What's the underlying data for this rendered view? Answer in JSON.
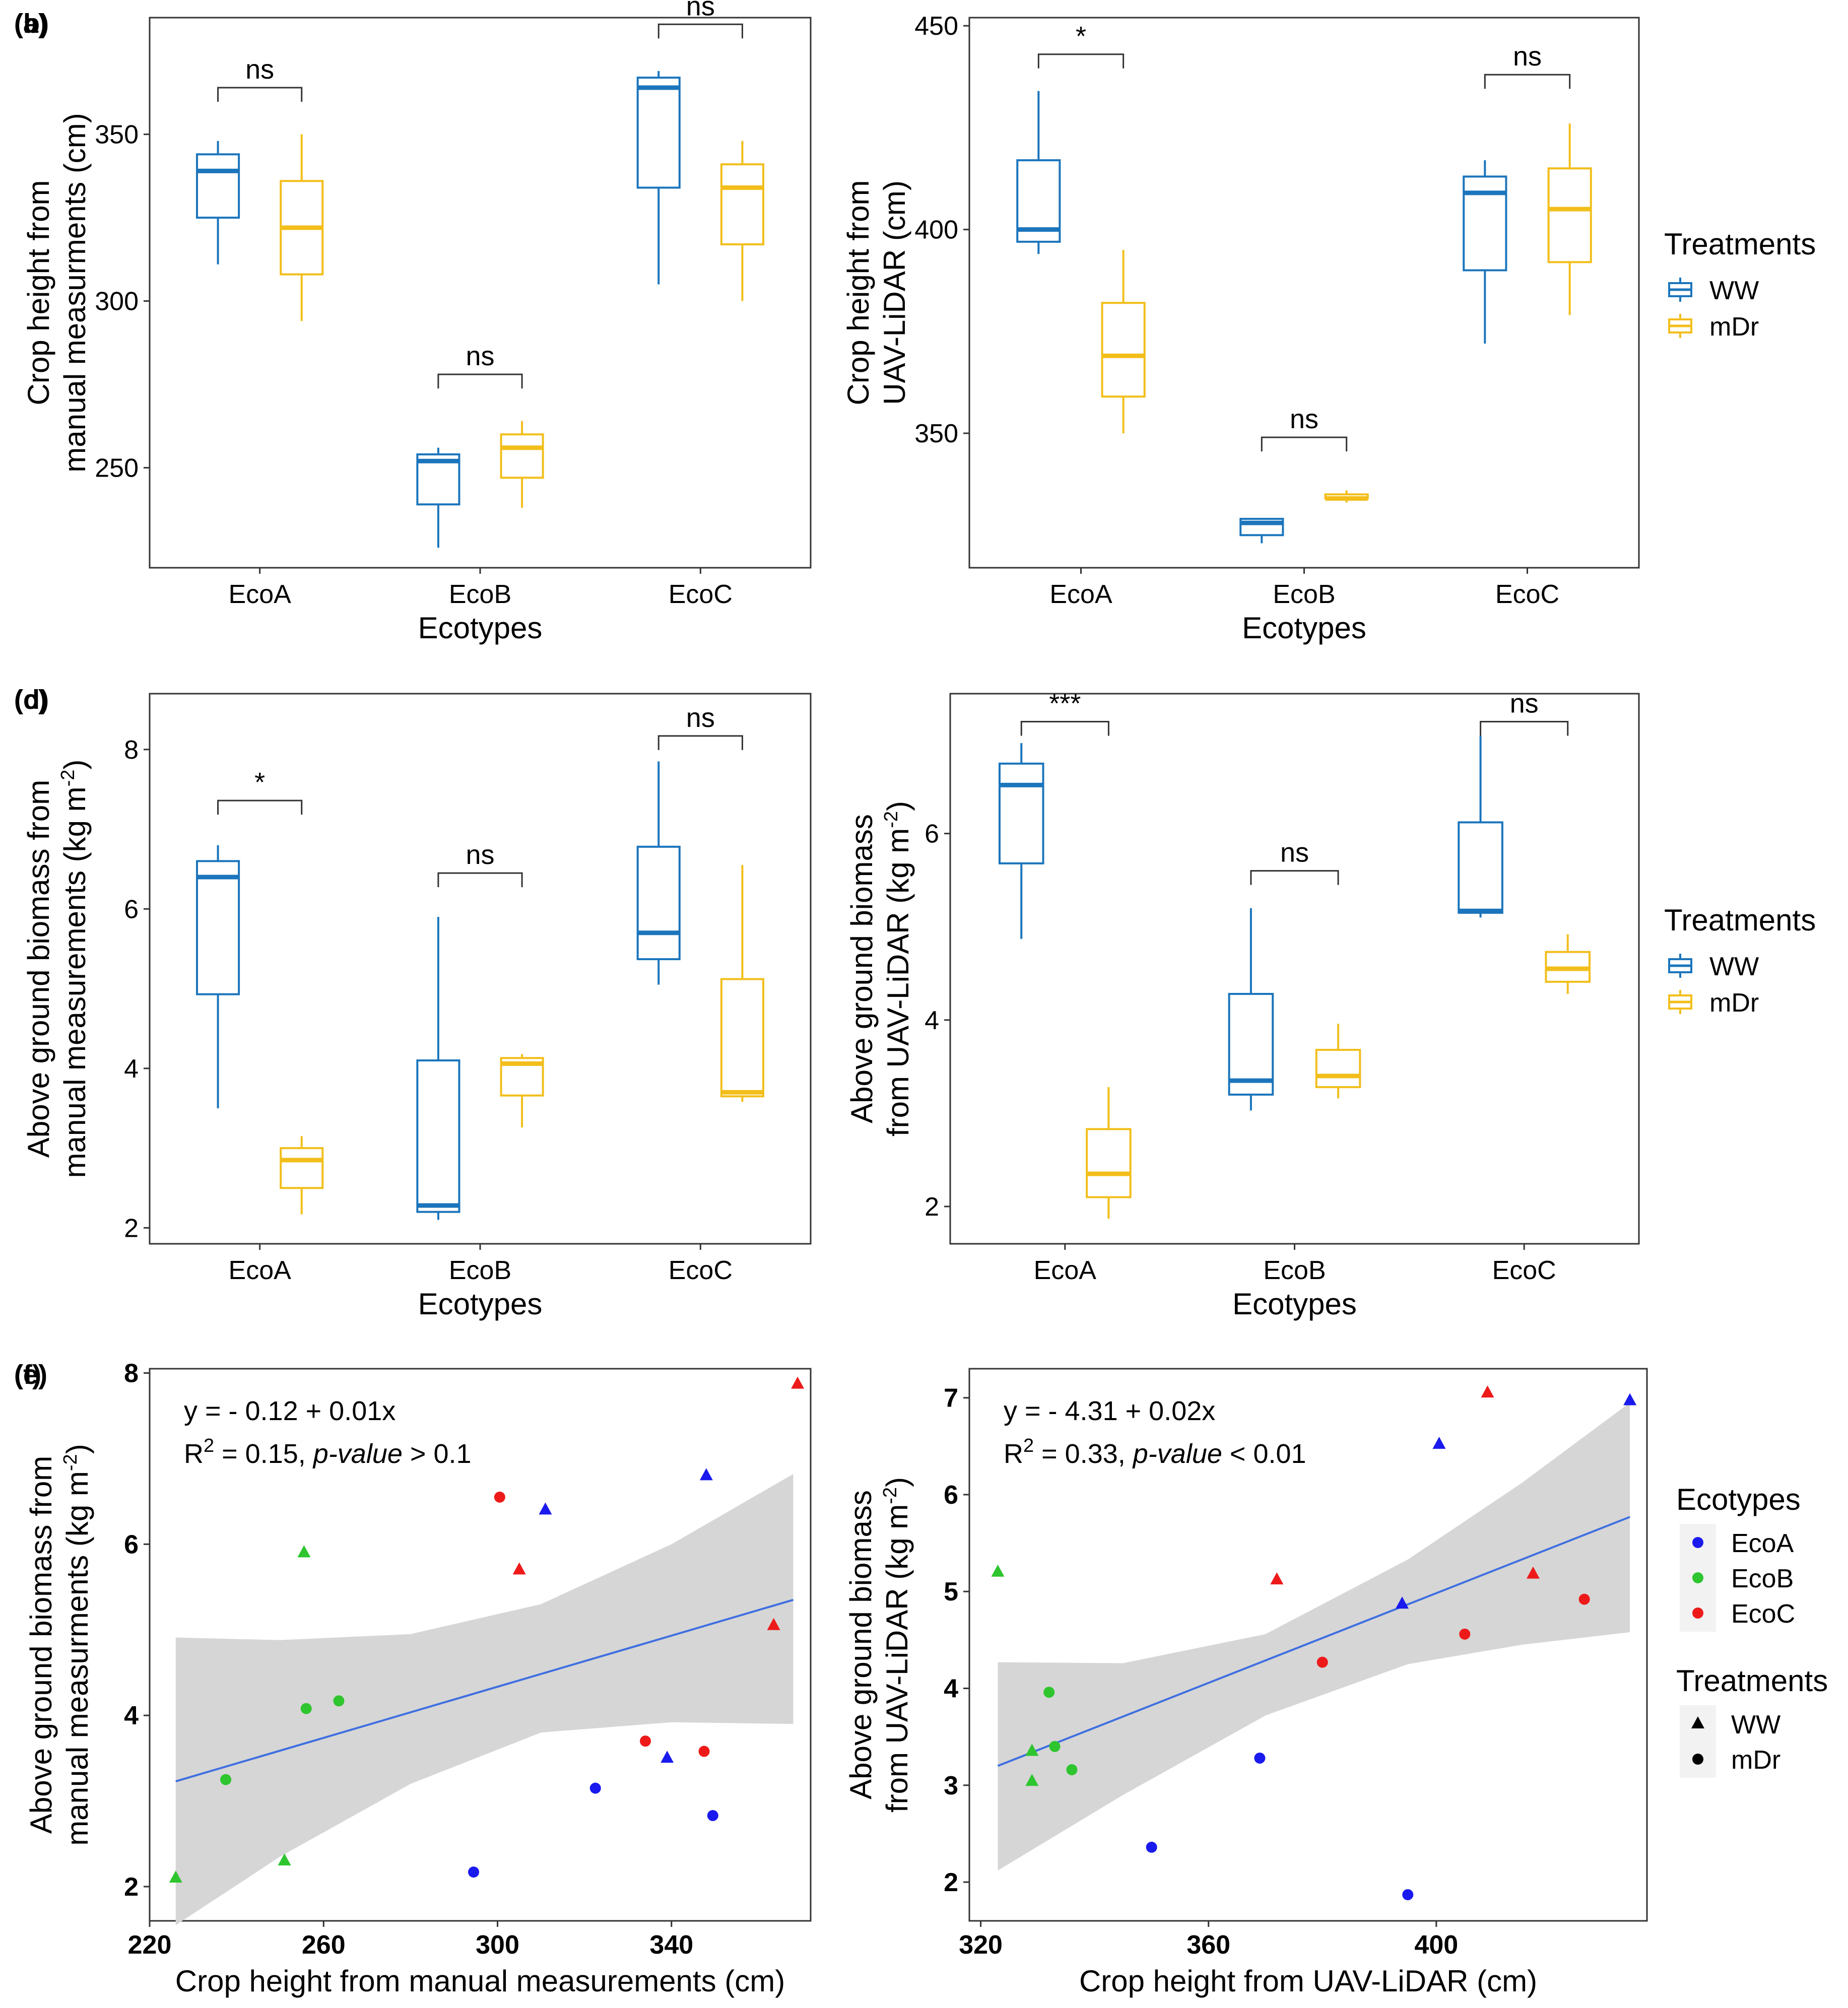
{
  "colors": {
    "WW": "#1b75bc",
    "mDr": "#f2be1a",
    "EcoA": "#1a1aee",
    "EcoB": "#2ec52e",
    "EcoC": "#ee1a1a",
    "band": "#d6d6d6",
    "fit": "#3f6fe0"
  },
  "chart_data": [
    {
      "id": "a",
      "type": "boxplot",
      "panel_label": "(a)",
      "ylabel_lines": [
        "Crop height from",
        "manual measurments (cm)"
      ],
      "xlabel": "Ecotypes",
      "categories": [
        "EcoA",
        "EcoB",
        "EcoC"
      ],
      "ylim": [
        220,
        385
      ],
      "yticks": [
        250,
        300,
        350
      ],
      "ytick_labels": [
        "250",
        "300",
        "350"
      ],
      "series": [
        {
          "name": "WW",
          "boxes": [
            [
              311,
              325,
              339,
              344,
              348
            ],
            [
              226,
              239,
              252,
              254,
              256
            ],
            [
              305,
              334,
              364,
              367,
              369
            ]
          ]
        },
        {
          "name": "mDr",
          "boxes": [
            [
              294,
              308,
              322,
              336,
              350
            ],
            [
              238,
              247,
              256,
              260,
              264
            ],
            [
              300,
              317,
              334,
              341,
              348
            ]
          ]
        }
      ],
      "significance": [
        {
          "category": 0,
          "label": "ns",
          "y": 364
        },
        {
          "category": 1,
          "label": "ns",
          "y": 278
        },
        {
          "category": 2,
          "label": "ns",
          "y": 383
        }
      ],
      "legend": {
        "title": "",
        "items": []
      }
    },
    {
      "id": "b",
      "type": "boxplot",
      "panel_label": "(b)",
      "ylabel_lines": [
        "Crop height from",
        "UAV-LiDAR (cm)"
      ],
      "xlabel": "Ecotypes",
      "categories": [
        "EcoA",
        "EcoB",
        "EcoC"
      ],
      "ylim": [
        317,
        452
      ],
      "yticks": [
        350,
        400,
        450
      ],
      "ytick_labels": [
        "350",
        "400",
        "450"
      ],
      "series": [
        {
          "name": "WW",
          "boxes": [
            [
              394,
              397,
              400,
              417,
              434
            ],
            [
              323,
              325,
              328,
              329,
              329
            ],
            [
              372,
              390,
              409,
              413,
              417
            ]
          ]
        },
        {
          "name": "mDr",
          "boxes": [
            [
              350,
              359,
              369,
              382,
              395
            ],
            [
              333,
              334,
              334,
              335,
              336
            ],
            [
              379,
              392,
              405,
              415,
              426
            ]
          ]
        }
      ],
      "significance": [
        {
          "category": 0,
          "label": "*",
          "y": 443
        },
        {
          "category": 1,
          "label": "ns",
          "y": 349
        },
        {
          "category": 2,
          "label": "ns",
          "y": 438
        }
      ],
      "legend": {
        "title": "Treatments",
        "items": [
          "WW",
          "mDr"
        ]
      }
    },
    {
      "id": "c",
      "type": "boxplot",
      "panel_label": "(c)",
      "ylabel_lines": [
        "Above ground biomass from",
        "manual measurements (kg m^-2)"
      ],
      "xlabel": "Ecotypes",
      "categories": [
        "EcoA",
        "EcoB",
        "EcoC"
      ],
      "ylim": [
        1.8,
        8.7
      ],
      "yticks": [
        2,
        4,
        6,
        8
      ],
      "ytick_labels": [
        "2",
        "4",
        "6",
        "8"
      ],
      "series": [
        {
          "name": "WW",
          "boxes": [
            [
              3.5,
              4.93,
              6.4,
              6.6,
              6.8
            ],
            [
              2.1,
              2.2,
              2.28,
              4.1,
              5.9
            ],
            [
              5.05,
              5.37,
              5.7,
              6.78,
              7.85
            ]
          ]
        },
        {
          "name": "mDr",
          "boxes": [
            [
              2.17,
              2.5,
              2.85,
              3.0,
              3.15
            ],
            [
              3.26,
              3.66,
              4.06,
              4.13,
              4.18
            ],
            [
              3.58,
              3.65,
              3.7,
              5.12,
              6.55
            ]
          ]
        }
      ],
      "significance": [
        {
          "category": 0,
          "label": "*",
          "y": 7.36
        },
        {
          "category": 1,
          "label": "ns",
          "y": 6.45
        },
        {
          "category": 2,
          "label": "ns",
          "y": 8.17
        }
      ],
      "legend": {
        "title": "",
        "items": []
      }
    },
    {
      "id": "d",
      "type": "boxplot",
      "panel_label": "(d)",
      "ylabel_lines": [
        "Above ground biomass",
        "from UAV-LiDAR (kg m^-2)"
      ],
      "xlabel": "Ecotypes",
      "categories": [
        "EcoA",
        "EcoB",
        "EcoC"
      ],
      "ylim": [
        1.6,
        7.5
      ],
      "yticks": [
        2,
        4,
        6
      ],
      "ytick_labels": [
        "2",
        "4",
        "6"
      ],
      "series": [
        {
          "name": "WW",
          "boxes": [
            [
              4.87,
              5.68,
              6.52,
              6.75,
              6.97
            ],
            [
              3.03,
              3.2,
              3.35,
              4.28,
              5.2
            ],
            [
              5.1,
              5.15,
              5.17,
              6.12,
              7.05
            ]
          ]
        },
        {
          "name": "mDr",
          "boxes": [
            [
              1.87,
              2.1,
              2.35,
              2.83,
              3.28
            ],
            [
              3.16,
              3.28,
              3.4,
              3.68,
              3.96
            ],
            [
              4.28,
              4.41,
              4.55,
              4.73,
              4.92
            ]
          ]
        }
      ],
      "significance": [
        {
          "category": 0,
          "label": "***",
          "y": 7.2
        },
        {
          "category": 1,
          "label": "ns",
          "y": 5.6
        },
        {
          "category": 2,
          "label": "ns",
          "y": 7.2
        }
      ],
      "legend": {
        "title": "Treatments",
        "items": [
          "WW",
          "mDr"
        ]
      }
    },
    {
      "id": "e",
      "type": "scatter",
      "panel_label": "(e)",
      "ylabel_lines": [
        "Above ground biomass from",
        "manual measurments (kg m^-2)"
      ],
      "xlabel": "Crop height from manual measurements (cm)",
      "xlim": [
        220,
        372
      ],
      "ylim": [
        1.6,
        8.05
      ],
      "xticks": [
        220,
        260,
        300,
        340
      ],
      "xtick_labels": [
        "220",
        "260",
        "300",
        "340"
      ],
      "yticks": [
        2,
        4,
        6,
        8
      ],
      "ytick_labels": [
        "2",
        "4",
        "6",
        "8"
      ],
      "equation": "y = - 0.12 + 0.01x",
      "stats_line": {
        "r2_prefix": "R",
        "r2_exp": "2",
        "r2_value": " = 0.15, ",
        "pvalue_label": "p-value",
        "pvalue_rest": " > 0.1"
      },
      "fit": {
        "x": [
          226,
          368
        ],
        "y": [
          3.23,
          5.35
        ]
      },
      "band": {
        "x": [
          226,
          250,
          280,
          310,
          340,
          368
        ],
        "lower": [
          1.55,
          2.35,
          3.2,
          3.8,
          3.92,
          3.9
        ],
        "upper": [
          4.91,
          4.88,
          4.95,
          5.3,
          6.0,
          6.82
        ]
      },
      "points": [
        {
          "x": 226,
          "y": 2.1,
          "ecotype": "EcoB",
          "treatment": "WW"
        },
        {
          "x": 237.5,
          "y": 3.25,
          "ecotype": "EcoB",
          "treatment": "mDr"
        },
        {
          "x": 251,
          "y": 2.3,
          "ecotype": "EcoB",
          "treatment": "WW"
        },
        {
          "x": 255.5,
          "y": 5.9,
          "ecotype": "EcoB",
          "treatment": "WW"
        },
        {
          "x": 256,
          "y": 4.08,
          "ecotype": "EcoB",
          "treatment": "mDr"
        },
        {
          "x": 263.5,
          "y": 4.17,
          "ecotype": "EcoB",
          "treatment": "mDr"
        },
        {
          "x": 294.5,
          "y": 2.17,
          "ecotype": "EcoA",
          "treatment": "mDr"
        },
        {
          "x": 300.5,
          "y": 6.55,
          "ecotype": "EcoC",
          "treatment": "mDr"
        },
        {
          "x": 305,
          "y": 5.7,
          "ecotype": "EcoC",
          "treatment": "WW"
        },
        {
          "x": 311,
          "y": 6.4,
          "ecotype": "EcoA",
          "treatment": "WW"
        },
        {
          "x": 322.5,
          "y": 3.15,
          "ecotype": "EcoA",
          "treatment": "mDr"
        },
        {
          "x": 334,
          "y": 3.7,
          "ecotype": "EcoC",
          "treatment": "mDr"
        },
        {
          "x": 339,
          "y": 3.5,
          "ecotype": "EcoA",
          "treatment": "WW"
        },
        {
          "x": 347.5,
          "y": 3.58,
          "ecotype": "EcoC",
          "treatment": "mDr"
        },
        {
          "x": 348,
          "y": 6.8,
          "ecotype": "EcoA",
          "treatment": "WW"
        },
        {
          "x": 349.5,
          "y": 2.83,
          "ecotype": "EcoA",
          "treatment": "mDr"
        },
        {
          "x": 363.5,
          "y": 5.05,
          "ecotype": "EcoC",
          "treatment": "WW"
        },
        {
          "x": 369,
          "y": 7.87,
          "ecotype": "EcoC",
          "treatment": "WW"
        }
      ],
      "legends": []
    },
    {
      "id": "f",
      "type": "scatter",
      "panel_label": "(f)",
      "ylabel_lines": [
        "Above ground biomass",
        "from UAV-LiDAR (kg m^-2)"
      ],
      "xlabel": "Crop height from UAV-LiDAR (cm)",
      "xlim": [
        318,
        437
      ],
      "ylim": [
        1.6,
        7.3
      ],
      "xticks": [
        320,
        360,
        400
      ],
      "xtick_labels": [
        "320",
        "360",
        "400"
      ],
      "yticks": [
        2,
        3,
        4,
        5,
        6,
        7
      ],
      "ytick_labels": [
        "2",
        "3",
        "4",
        "5",
        "6",
        "7"
      ],
      "equation": "y = - 4.31 + 0.02x",
      "stats_line": {
        "r2_prefix": "R",
        "r2_exp": "2",
        "r2_value": " = 0.33, ",
        "pvalue_label": "p-value",
        "pvalue_rest": " < 0.01"
      },
      "fit": {
        "x": [
          323,
          434
        ],
        "y": [
          3.2,
          5.77
        ]
      },
      "band": {
        "x": [
          323,
          345,
          370,
          395,
          415,
          434
        ],
        "lower": [
          2.12,
          2.9,
          3.72,
          4.25,
          4.45,
          4.58
        ],
        "upper": [
          4.27,
          4.26,
          4.56,
          5.33,
          6.12,
          6.95
        ]
      },
      "points": [
        {
          "x": 323,
          "y": 5.2,
          "ecotype": "EcoB",
          "treatment": "WW"
        },
        {
          "x": 329,
          "y": 3.35,
          "ecotype": "EcoB",
          "treatment": "WW"
        },
        {
          "x": 329,
          "y": 3.04,
          "ecotype": "EcoB",
          "treatment": "WW"
        },
        {
          "x": 332,
          "y": 3.96,
          "ecotype": "EcoB",
          "treatment": "mDr"
        },
        {
          "x": 333,
          "y": 3.4,
          "ecotype": "EcoB",
          "treatment": "mDr"
        },
        {
          "x": 336,
          "y": 3.16,
          "ecotype": "EcoB",
          "treatment": "mDr"
        },
        {
          "x": 350,
          "y": 2.36,
          "ecotype": "EcoA",
          "treatment": "mDr"
        },
        {
          "x": 369,
          "y": 3.28,
          "ecotype": "EcoA",
          "treatment": "mDr"
        },
        {
          "x": 372,
          "y": 5.12,
          "ecotype": "EcoC",
          "treatment": "WW"
        },
        {
          "x": 380,
          "y": 4.27,
          "ecotype": "EcoC",
          "treatment": "mDr"
        },
        {
          "x": 394,
          "y": 4.87,
          "ecotype": "EcoA",
          "treatment": "WW"
        },
        {
          "x": 395,
          "y": 1.87,
          "ecotype": "EcoA",
          "treatment": "mDr"
        },
        {
          "x": 400.5,
          "y": 6.52,
          "ecotype": "EcoA",
          "treatment": "WW"
        },
        {
          "x": 405,
          "y": 4.56,
          "ecotype": "EcoC",
          "treatment": "mDr"
        },
        {
          "x": 409,
          "y": 7.05,
          "ecotype": "EcoC",
          "treatment": "WW"
        },
        {
          "x": 417,
          "y": 5.18,
          "ecotype": "EcoC",
          "treatment": "WW"
        },
        {
          "x": 426,
          "y": 4.92,
          "ecotype": "EcoC",
          "treatment": "mDr"
        },
        {
          "x": 434,
          "y": 6.97,
          "ecotype": "EcoA",
          "treatment": "WW"
        }
      ],
      "legends": [
        {
          "title": "Ecotypes",
          "kind": "color",
          "items": [
            "EcoA",
            "EcoB",
            "EcoC"
          ]
        },
        {
          "title": "Treatments",
          "kind": "shape",
          "items": [
            "WW",
            "mDr"
          ]
        }
      ]
    }
  ]
}
